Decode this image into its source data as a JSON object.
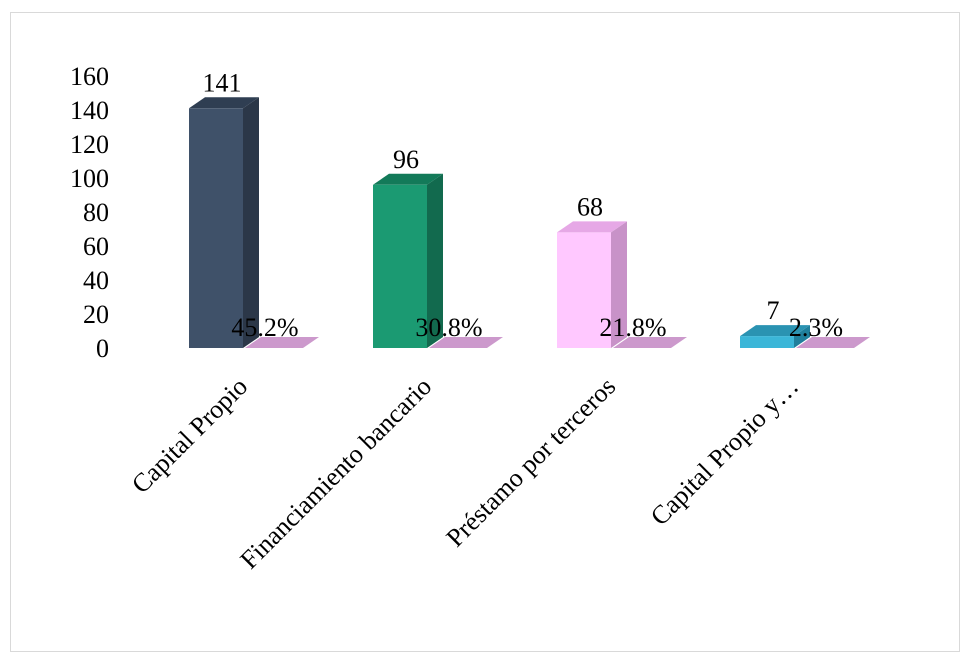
{
  "chart_data": {
    "type": "bar",
    "categories": [
      "Capital Propio",
      "Financiamiento bancario",
      "Préstamo por terceros",
      "Capital Propio y…"
    ],
    "series": [
      {
        "values": [
          141,
          96,
          68,
          7
        ]
      },
      {
        "values": [
          "45.2%",
          "30.8%",
          "21.8%",
          "2.3%"
        ]
      }
    ],
    "ylim": [
      0,
      160
    ],
    "yticks": [
      "0",
      "20",
      "40",
      "60",
      "80",
      "100",
      "120",
      "140",
      "160"
    ],
    "grid": false,
    "legend": "none",
    "style": "3d-column",
    "colors": {
      "bars": [
        "#3f5169",
        "#1b9a72",
        "#ffc8ff",
        "#3bb6d8"
      ],
      "bar_tops": [
        "#2f3e52",
        "#137a59",
        "#e6a8e6",
        "#2a93b2"
      ],
      "bar_sides": [
        "#2b3748",
        "#126a4e",
        "#c892c8",
        "#1f7f9c"
      ],
      "percent_series": "#cc99cc"
    }
  }
}
